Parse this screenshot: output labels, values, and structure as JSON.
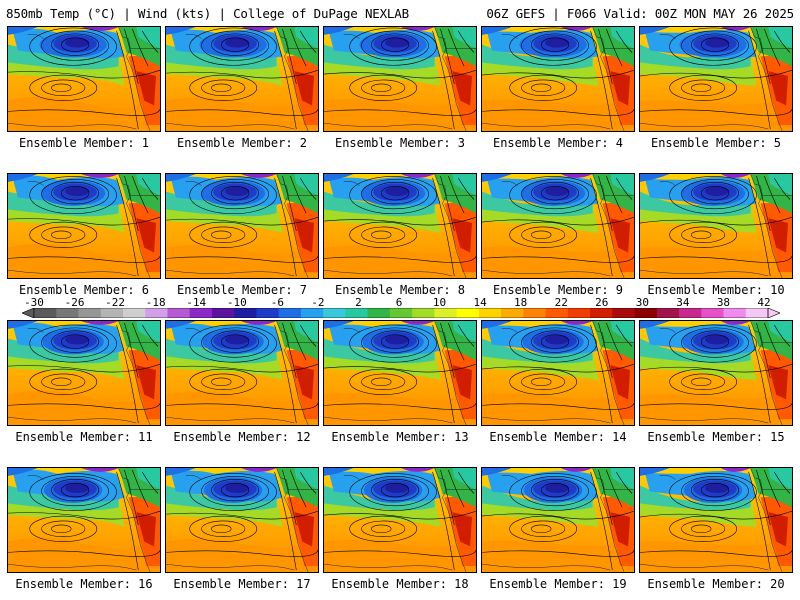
{
  "header": {
    "left": "850mb Temp (°C) | Wind (kts) | College of DuPage NEXLAB",
    "right": "06Z GEFS | F066 Valid: 00Z MON MAY 26 2025"
  },
  "members": [
    {
      "label": "Ensemble Member: 1"
    },
    {
      "label": "Ensemble Member: 2"
    },
    {
      "label": "Ensemble Member: 3"
    },
    {
      "label": "Ensemble Member: 4"
    },
    {
      "label": "Ensemble Member: 5"
    },
    {
      "label": "Ensemble Member: 6"
    },
    {
      "label": "Ensemble Member: 7"
    },
    {
      "label": "Ensemble Member: 8"
    },
    {
      "label": "Ensemble Member: 9"
    },
    {
      "label": "Ensemble Member: 10"
    },
    {
      "label": "Ensemble Member: 11"
    },
    {
      "label": "Ensemble Member: 12"
    },
    {
      "label": "Ensemble Member: 13"
    },
    {
      "label": "Ensemble Member: 14"
    },
    {
      "label": "Ensemble Member: 15"
    },
    {
      "label": "Ensemble Member: 16"
    },
    {
      "label": "Ensemble Member: 17"
    },
    {
      "label": "Ensemble Member: 18"
    },
    {
      "label": "Ensemble Member: 19"
    },
    {
      "label": "Ensemble Member: 20"
    }
  ],
  "colorbar": {
    "labels": [
      "-30",
      "-26",
      "-22",
      "-18",
      "-14",
      "-10",
      "-6",
      "-2",
      "2",
      "6",
      "10",
      "14",
      "18",
      "22",
      "26",
      "30",
      "34",
      "38",
      "42"
    ],
    "colors": [
      "#5a5a5a",
      "#787878",
      "#969696",
      "#b4b4b4",
      "#cfcfcf",
      "#d2a0e8",
      "#b45ad2",
      "#8c28c8",
      "#5a14a0",
      "#1e1ea0",
      "#1e3cc8",
      "#1e6ee6",
      "#28a0f0",
      "#3cc8dc",
      "#28c8a0",
      "#32b446",
      "#64c832",
      "#a0dc28",
      "#dcf028",
      "#ffff00",
      "#ffd200",
      "#ffaa00",
      "#ff8200",
      "#ff5a00",
      "#f03c00",
      "#d21e00",
      "#aa0a0a",
      "#8c0000",
      "#a0144a",
      "#c8288c",
      "#e650c8",
      "#f08cf0",
      "#f5c8f5"
    ]
  }
}
